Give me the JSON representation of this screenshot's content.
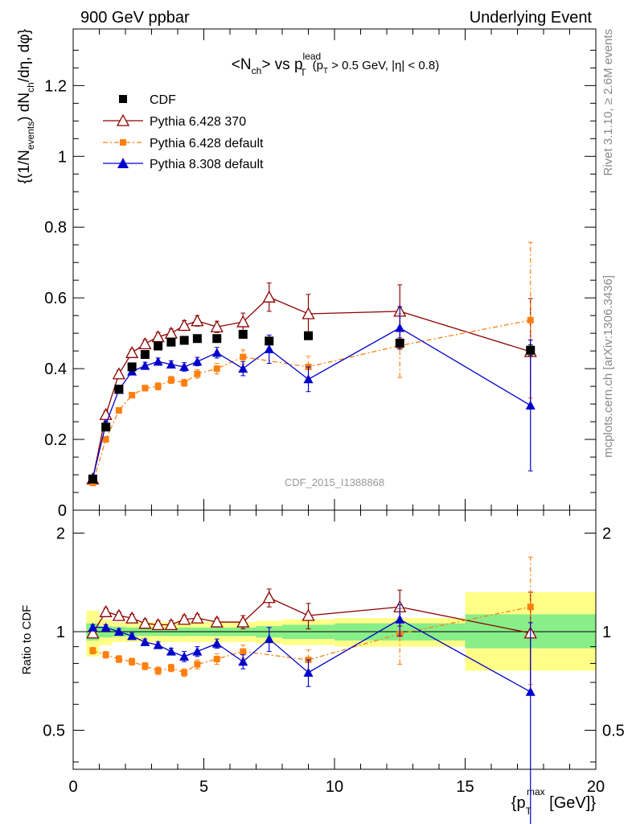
{
  "header": {
    "left": "900 GeV ppbar",
    "right": "Underlying Event"
  },
  "side_labels": {
    "rivet": "Rivet 3.1.10, ≥ 2.6M events",
    "mcplots": "mcplots.cern.ch [arXiv:1306.3436]"
  },
  "watermark": "CDF_2015_I1388868",
  "chart_data": [
    {
      "type": "scatter",
      "panel": "main",
      "title": "<N_ch> vs p_T^lead (p_T > 0.5 GeV, |η| < 0.8)",
      "title_parts": {
        "a": "<N",
        "a_sub": "ch",
        "b": "> vs p",
        "b_sup": "lead",
        "b_sub": "T",
        "cut": "(p",
        "cut_sub": "T",
        "cut_rest": " > 0.5 GeV, |η| < 0.8)"
      },
      "ylabel": "{(1/N_events) dN_ch/dη, dφ}",
      "ylabel_parts": {
        "p1": "{(1/N",
        "p1_sub": "events",
        "p2": ") dN",
        "p2_sub": "ch",
        "p3": "/dη, dφ}"
      },
      "xlim": [
        0,
        20
      ],
      "ylim": [
        0,
        1.36
      ],
      "yticks": [
        "0",
        "0.2",
        "0.4",
        "0.6",
        "0.8",
        "1",
        "1.2"
      ],
      "yticks_values": [
        0,
        0.2,
        0.4,
        0.6,
        0.8,
        1.0,
        1.2
      ],
      "legend_placement": "top-left",
      "series": [
        {
          "name": "CDF",
          "color": "#000000",
          "marker": "square",
          "x": [
            0.75,
            1.25,
            1.75,
            2.25,
            2.75,
            3.25,
            3.75,
            4.25,
            4.75,
            5.5,
            6.5,
            7.5,
            9.0,
            12.5,
            17.5
          ],
          "y": [
            0.088,
            0.235,
            0.342,
            0.405,
            0.44,
            0.464,
            0.475,
            0.48,
            0.485,
            0.485,
            0.497,
            0.478,
            0.493,
            0.472,
            0.452
          ],
          "err": [
            0.005,
            0.005,
            0.005,
            0.005,
            0.005,
            0.005,
            0.005,
            0.005,
            0.005,
            0.005,
            0.005,
            0.005,
            0.006,
            0.008,
            0.015
          ]
        },
        {
          "name": "Pythia 6.428 370",
          "color": "#8b0000",
          "marker": "open-triangle",
          "line": "solid",
          "x": [
            0.75,
            1.25,
            1.75,
            2.25,
            2.75,
            3.25,
            3.75,
            4.25,
            4.75,
            5.5,
            6.5,
            7.5,
            9.0,
            12.5,
            17.5
          ],
          "y": [
            0.088,
            0.27,
            0.385,
            0.445,
            0.47,
            0.49,
            0.5,
            0.522,
            0.535,
            0.518,
            0.532,
            0.602,
            0.555,
            0.562,
            0.448
          ],
          "err": [
            0.005,
            0.01,
            0.01,
            0.01,
            0.012,
            0.012,
            0.012,
            0.014,
            0.015,
            0.016,
            0.025,
            0.04,
            0.055,
            0.075,
            0.15
          ]
        },
        {
          "name": "Pythia 6.428 default",
          "color": "#ff7f0e",
          "marker": "small-square",
          "line": "dashdot",
          "x": [
            0.75,
            1.25,
            1.75,
            2.25,
            2.75,
            3.25,
            3.75,
            4.25,
            4.75,
            5.5,
            6.5,
            9.0,
            12.5,
            17.5
          ],
          "y": [
            0.077,
            0.2,
            0.282,
            0.325,
            0.345,
            0.35,
            0.368,
            0.36,
            0.385,
            0.4,
            0.433,
            0.405,
            0.465,
            0.537
          ],
          "err": [
            0.004,
            0.008,
            0.008,
            0.008,
            0.008,
            0.01,
            0.01,
            0.01,
            0.012,
            0.015,
            0.02,
            0.03,
            0.09,
            0.22
          ]
        },
        {
          "name": "Pythia 8.308 default",
          "color": "#0000cc",
          "marker": "triangle",
          "line": "solid",
          "x": [
            0.75,
            1.25,
            1.75,
            2.25,
            2.75,
            3.25,
            3.75,
            4.25,
            4.75,
            5.5,
            6.5,
            7.5,
            9.0,
            12.5,
            17.5
          ],
          "y": [
            0.09,
            0.243,
            0.34,
            0.392,
            0.408,
            0.42,
            0.412,
            0.405,
            0.42,
            0.445,
            0.4,
            0.455,
            0.37,
            0.515,
            0.296
          ],
          "err": [
            0.004,
            0.008,
            0.008,
            0.008,
            0.01,
            0.01,
            0.01,
            0.012,
            0.012,
            0.015,
            0.02,
            0.04,
            0.035,
            0.06,
            0.185
          ]
        }
      ]
    },
    {
      "type": "scatter",
      "panel": "ratio",
      "ylabel": "Ratio to CDF",
      "xlabel": "{p_T^max [GeV]}",
      "xlabel_parts": {
        "a": "{p",
        "a_sub": "T",
        "a_sup": "max",
        "b": " [GeV]}"
      },
      "xlim": [
        0,
        20
      ],
      "ylim": [
        0.38,
        2.35
      ],
      "yscale": "log",
      "xticks": [
        "0",
        "5",
        "10",
        "15",
        "20"
      ],
      "xticks_values": [
        0,
        5,
        10,
        15,
        20
      ],
      "yticks": [
        "0.5",
        "1",
        "2"
      ],
      "yticks_values": [
        0.5,
        1,
        2
      ],
      "reference_line": 1,
      "bands": {
        "x_edges": [
          0.5,
          1.0,
          1.5,
          2.0,
          2.5,
          3.0,
          3.5,
          4.0,
          4.5,
          5.0,
          6.0,
          7.0,
          8.0,
          10.0,
          15.0,
          20.0
        ],
        "stat_lo": [
          0.94,
          0.96,
          0.965,
          0.97,
          0.97,
          0.97,
          0.97,
          0.97,
          0.97,
          0.97,
          0.97,
          0.96,
          0.95,
          0.94,
          0.89
        ],
        "stat_hi": [
          1.06,
          1.04,
          1.035,
          1.03,
          1.03,
          1.03,
          1.03,
          1.03,
          1.03,
          1.03,
          1.03,
          1.04,
          1.05,
          1.06,
          1.13
        ],
        "syst_lo": [
          0.84,
          0.91,
          0.93,
          0.93,
          0.93,
          0.93,
          0.93,
          0.93,
          0.93,
          0.93,
          0.93,
          0.92,
          0.91,
          0.9,
          0.76
        ],
        "syst_hi": [
          1.16,
          1.09,
          1.07,
          1.07,
          1.07,
          1.07,
          1.07,
          1.07,
          1.07,
          1.07,
          1.07,
          1.08,
          1.09,
          1.1,
          1.32
        ]
      },
      "series": [
        {
          "name": "Pythia 6.428 370",
          "color": "#8b0000",
          "x": [
            0.75,
            1.25,
            1.75,
            2.25,
            2.75,
            3.25,
            3.75,
            4.25,
            4.75,
            5.5,
            6.5,
            7.5,
            9.0,
            12.5,
            17.5
          ],
          "y": [
            0.99,
            1.15,
            1.12,
            1.1,
            1.06,
            1.05,
            1.05,
            1.09,
            1.1,
            1.07,
            1.07,
            1.27,
            1.12,
            1.19,
            0.99
          ],
          "err": [
            0.03,
            0.03,
            0.03,
            0.03,
            0.03,
            0.03,
            0.03,
            0.03,
            0.03,
            0.03,
            0.05,
            0.08,
            0.1,
            0.15,
            0.33
          ]
        },
        {
          "name": "Pythia 6.428 default",
          "color": "#ff7f0e",
          "x": [
            0.75,
            1.25,
            1.75,
            2.25,
            2.75,
            3.25,
            3.75,
            4.25,
            4.75,
            5.5,
            6.5,
            9.0,
            12.5,
            17.5
          ],
          "y": [
            0.875,
            0.85,
            0.825,
            0.81,
            0.785,
            0.76,
            0.775,
            0.75,
            0.795,
            0.825,
            0.87,
            0.82,
            0.985,
            1.19
          ],
          "err": [
            0.02,
            0.02,
            0.02,
            0.02,
            0.02,
            0.02,
            0.02,
            0.02,
            0.025,
            0.03,
            0.04,
            0.06,
            0.19,
            0.5
          ]
        },
        {
          "name": "Pythia 8.308 default",
          "color": "#0000cc",
          "x": [
            0.75,
            1.25,
            1.75,
            2.25,
            2.75,
            3.25,
            3.75,
            4.25,
            4.75,
            5.5,
            6.5,
            7.5,
            9.0,
            12.5,
            17.5
          ],
          "y": [
            1.03,
            1.03,
            1.0,
            0.97,
            0.93,
            0.91,
            0.87,
            0.84,
            0.87,
            0.92,
            0.81,
            0.95,
            0.75,
            1.09,
            0.655
          ],
          "err": [
            0.02,
            0.02,
            0.02,
            0.02,
            0.02,
            0.02,
            0.02,
            0.03,
            0.03,
            0.03,
            0.04,
            0.08,
            0.07,
            0.12,
            0.41
          ]
        }
      ]
    }
  ]
}
